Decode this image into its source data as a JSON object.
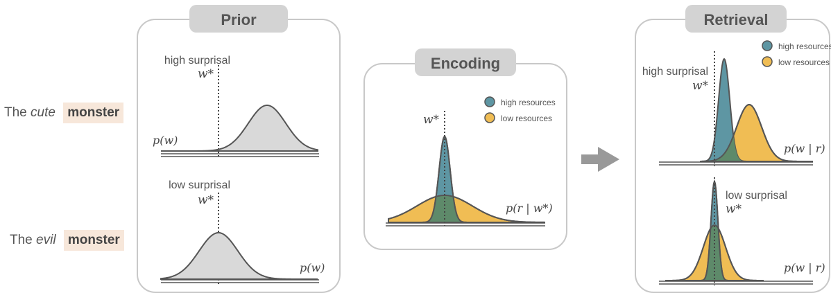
{
  "sentences": [
    {
      "article": "The",
      "adjective": "cute",
      "noun": "monster"
    },
    {
      "article": "The",
      "adjective": "evil",
      "noun": "monster"
    }
  ],
  "panels": {
    "prior": {
      "title": "Prior",
      "top": {
        "surprisal_label": "high surprisal",
        "target_label": "w*",
        "dist_label": "p(w)"
      },
      "bottom": {
        "surprisal_label": "low surprisal",
        "target_label": "w*",
        "dist_label": "p(w)"
      }
    },
    "encoding": {
      "title": "Encoding",
      "target_label": "w*",
      "dist_label": "p(r | w*)",
      "legend": [
        {
          "label": "high resources",
          "color": "#5e96a3"
        },
        {
          "label": "low resources",
          "color": "#f0bd54"
        }
      ]
    },
    "retrieval": {
      "title": "Retrieval",
      "top": {
        "surprisal_label": "high surprisal",
        "target_label": "w*",
        "dist_label": "p(w | r)"
      },
      "bottom": {
        "surprisal_label": "low surprisal",
        "target_label": "w*",
        "dist_label": "p(w | r)"
      },
      "legend": [
        {
          "label": "high resources",
          "color": "#5e96a3"
        },
        {
          "label": "low resources",
          "color": "#f0bd54"
        }
      ]
    }
  },
  "colors": {
    "prior_fill": "#d9d9d9",
    "high_resources": "#5e96a3",
    "low_resources": "#f0bd54",
    "overlap": "#5e8a6a",
    "panel_border": "#c8c8c8",
    "title_bg": "#d3d3d3",
    "highlight": "#f7e7da",
    "arrow": "#999999"
  },
  "icons": [
    "right-arrow-icon"
  ]
}
